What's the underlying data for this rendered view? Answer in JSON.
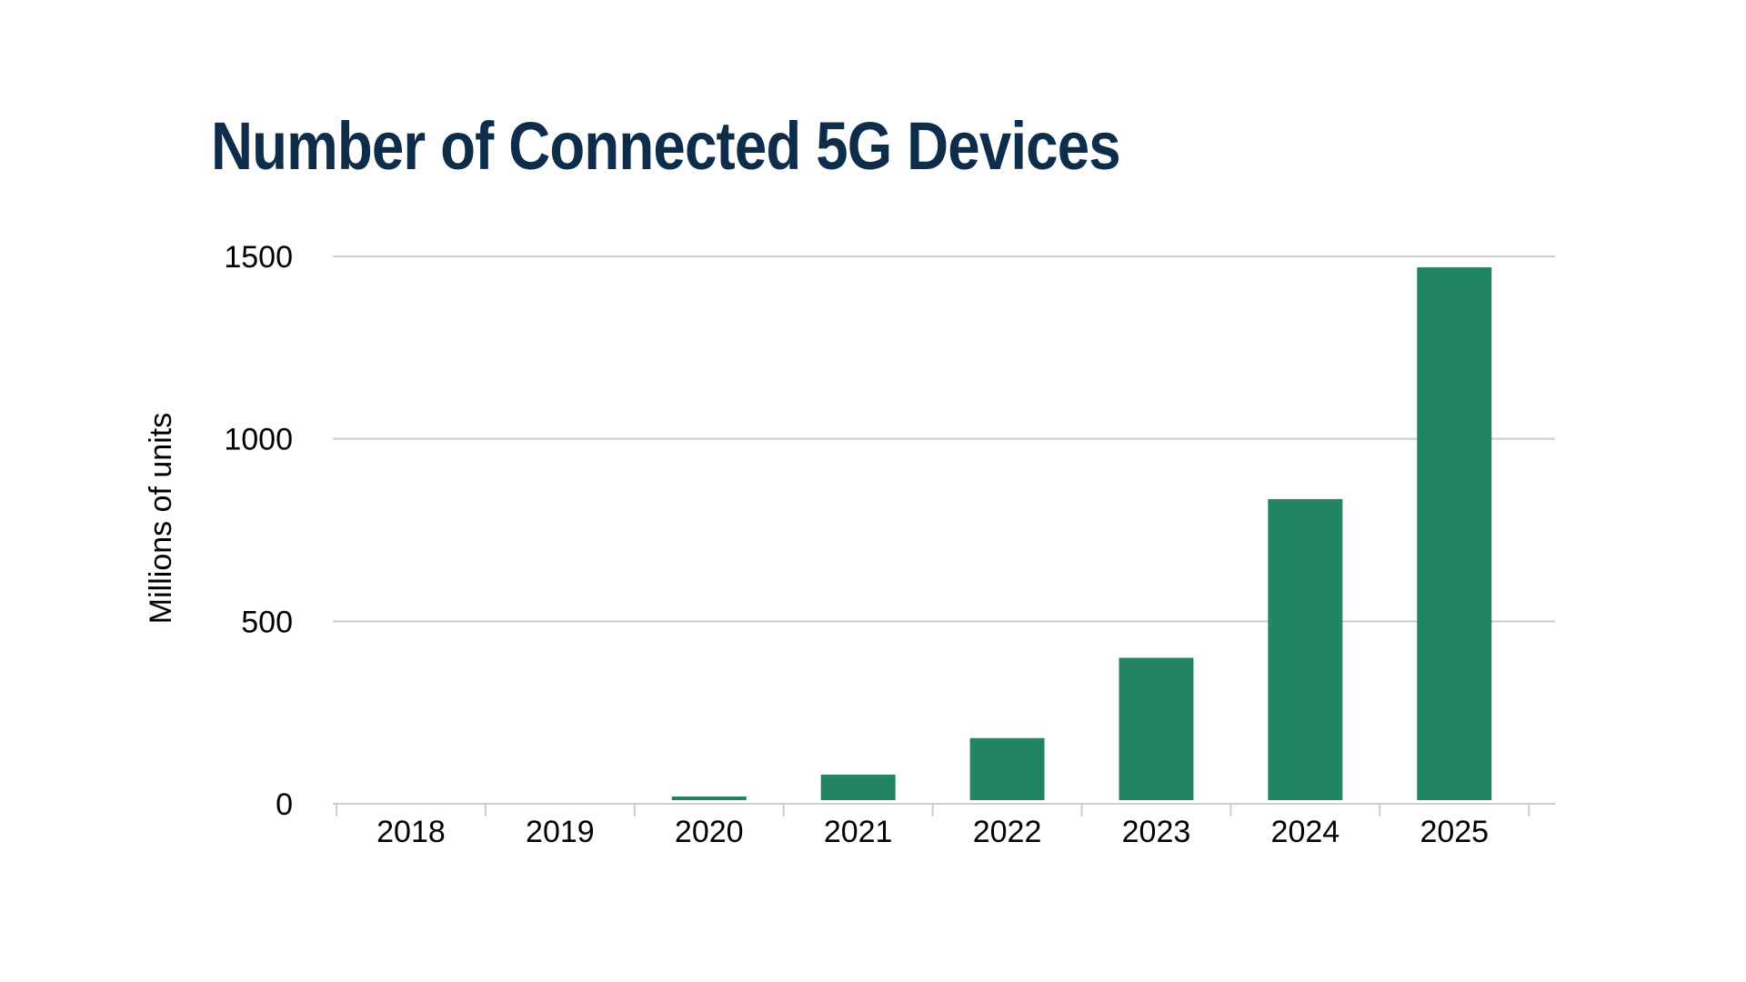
{
  "chart_data": {
    "type": "bar",
    "title": "Number of Connected 5G Devices",
    "xlabel": "",
    "ylabel": "Millions of units",
    "categories": [
      "2018",
      "2019",
      "2020",
      "2021",
      "2022",
      "2023",
      "2024",
      "2025"
    ],
    "values": [
      0,
      10,
      20,
      80,
      180,
      400,
      835,
      1470
    ],
    "ylim": [
      0,
      1500
    ],
    "yticks": [
      0,
      500,
      1000,
      1500
    ],
    "grid": true,
    "bar_color": "#218463",
    "gridline_color": "#cccccc",
    "title_color": "#0e2d4a"
  }
}
